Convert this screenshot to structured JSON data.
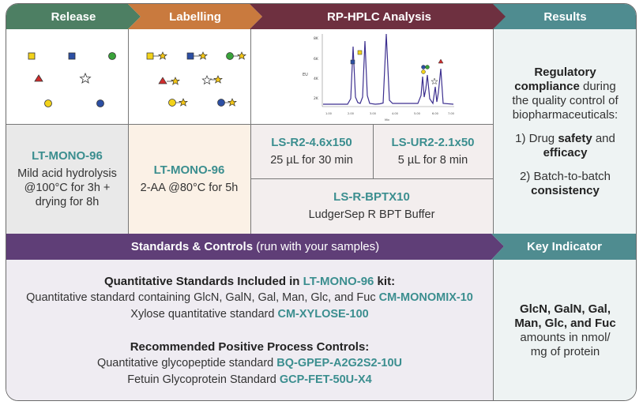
{
  "colors": {
    "release": "#4d7f63",
    "labelling": "#c97a3e",
    "rphplc": "#6e3040",
    "results": "#4f8c90",
    "standards": "#5f3e77",
    "accent": "#3b8e8f"
  },
  "headers": {
    "release": "Release",
    "labelling": "Labelling",
    "rphplc": "RP-HPLC Analysis",
    "results": "Results"
  },
  "release": {
    "product": "LT-MONO-96",
    "line1": "Mild acid hydrolysis",
    "line2": "@100°C for 3h +",
    "line3": "drying for 8h"
  },
  "labelling": {
    "product": "LT-MONO-96",
    "line1": "2-AA @80°C for 5h"
  },
  "columns": {
    "col1": {
      "product": "LS-R2-4.6x150",
      "desc": "25 µL for 30 min"
    },
    "col2": {
      "product": "LS-UR2-2.1x50",
      "desc": "5 µL for 8 min"
    },
    "buffer": {
      "product": "LS-R-BPTX10",
      "desc": "LudgerSep R BPT Buffer"
    }
  },
  "results": {
    "p1_a": "Regulatory",
    "p1_b": "compliance",
    "p1_c": " during",
    "p1_d": "the quality control of",
    "p1_e": "biopharmaceuticals:",
    "p2_a": "1) Drug ",
    "p2_b": "safety",
    "p2_c": " and",
    "p2_d": "efficacy",
    "p3_a": "2) Batch-to-batch",
    "p3_b": "consistency"
  },
  "chromatogram": {
    "y_axis_label": "EU",
    "y_ticks": [
      "8K",
      "6K",
      "4K",
      "2K"
    ],
    "x_ticks": [
      "1.00",
      "2.00",
      "3.00",
      "4.00",
      "5.00",
      "6.00",
      "7.00"
    ],
    "x_axis_label": "Min"
  },
  "standards_bar": {
    "bold": "Standards & Controls",
    "normal": " (run with your samples)"
  },
  "key_indicator_bar": "Key Indicator",
  "standards": {
    "q_title_a": "Quantitative Standards Included in ",
    "q_title_b": "LT-MONO-96",
    "q_title_c": " kit:",
    "q1_text": "Quantitative standard containing GlcN, GalN, Gal, Man, Glc, and Fuc ",
    "q1_code": "CM-MONOMIX-10",
    "q2_text": "Xylose quantitative standard ",
    "q2_code": "CM-XYLOSE-100",
    "r_title": "Recommended Positive Process Controls:",
    "r1_text": "Quantitative glycopeptide standard ",
    "r1_code": "BQ-GPEP-A2G2S2-10U",
    "r2_text": "Fetuin Glycoprotein Standard ",
    "r2_code": "GCP-FET-50U-X4"
  },
  "key_indicator": {
    "bold1": "GlcN, GalN, Gal,",
    "bold2": "Man, Glc, and Fuc",
    "line3": "amounts in nmol/",
    "line4": "mg of protein"
  }
}
